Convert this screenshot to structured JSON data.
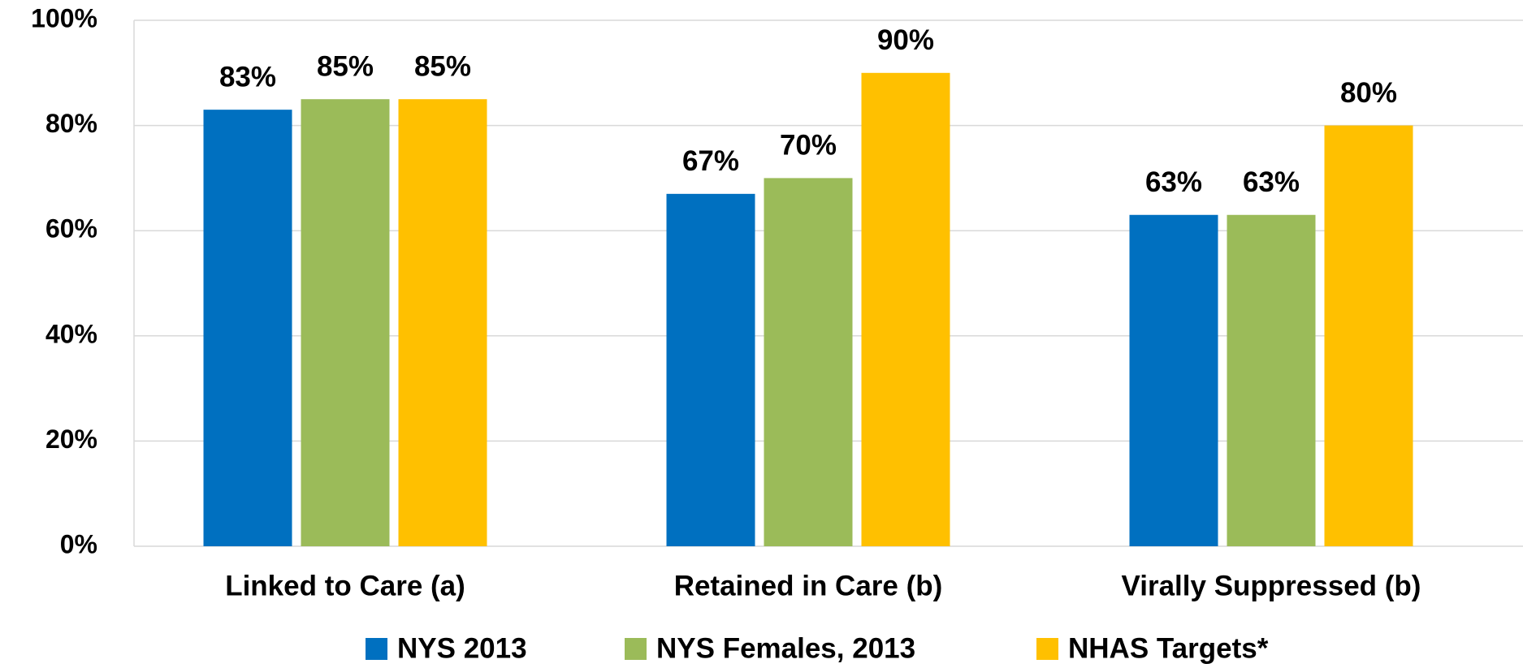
{
  "chart_data": {
    "type": "bar",
    "categories": [
      "Linked to Care (a)",
      "Retained in Care (b)",
      "Virally Suppressed (b)"
    ],
    "series": [
      {
        "name": "NYS 2013",
        "color": "#0070c0",
        "values": [
          83,
          67,
          63
        ],
        "value_labels": [
          "83%",
          "67%",
          "63%"
        ]
      },
      {
        "name": "NYS Females, 2013",
        "color": "#9bbb59",
        "values": [
          85,
          70,
          63
        ],
        "value_labels": [
          "85%",
          "70%",
          "63%"
        ]
      },
      {
        "name": "NHAS Targets*",
        "color": "#ffc000",
        "values": [
          85,
          90,
          80
        ],
        "value_labels": [
          "85%",
          "90%",
          "80%"
        ]
      }
    ],
    "ylim": [
      0,
      100
    ],
    "yticks": [
      {
        "value": 0,
        "label": "0%"
      },
      {
        "value": 20,
        "label": "20%"
      },
      {
        "value": 40,
        "label": "40%"
      },
      {
        "value": 60,
        "label": "60%"
      },
      {
        "value": 80,
        "label": "80%"
      },
      {
        "value": 100,
        "label": "100%"
      }
    ],
    "grid": true,
    "legend": "bottom"
  }
}
